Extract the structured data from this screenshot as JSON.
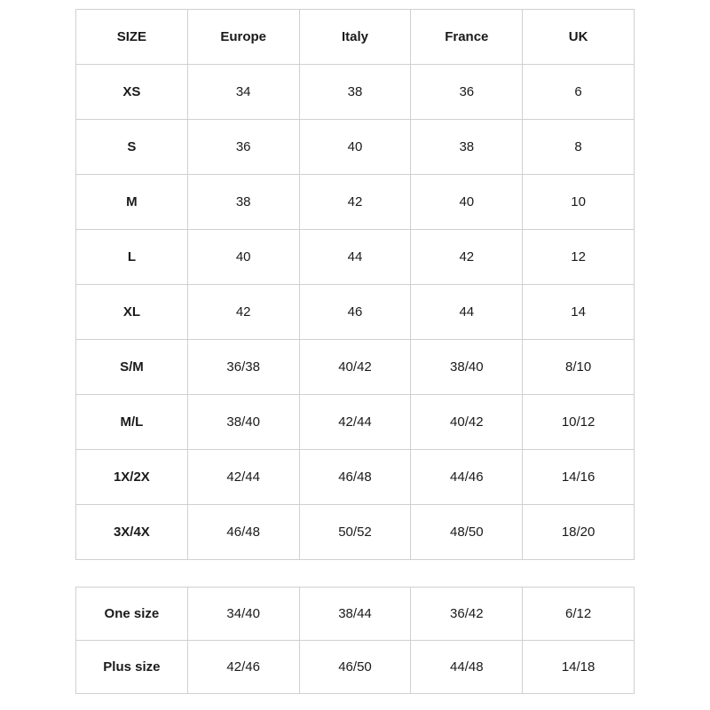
{
  "mainTable": {
    "headers": [
      "SIZE",
      "Europe",
      "Italy",
      "France",
      "UK"
    ],
    "rows": [
      [
        "XS",
        "34",
        "38",
        "36",
        "6"
      ],
      [
        "S",
        "36",
        "40",
        "38",
        "8"
      ],
      [
        "M",
        "38",
        "42",
        "40",
        "10"
      ],
      [
        "L",
        "40",
        "44",
        "42",
        "12"
      ],
      [
        "XL",
        "42",
        "46",
        "44",
        "14"
      ],
      [
        "S/M",
        "36/38",
        "40/42",
        "38/40",
        "8/10"
      ],
      [
        "M/L",
        "38/40",
        "42/44",
        "40/42",
        "10/12"
      ],
      [
        "1X/2X",
        "42/44",
        "46/48",
        "44/46",
        "14/16"
      ],
      [
        "3X/4X",
        "46/48",
        "50/52",
        "48/50",
        "18/20"
      ]
    ]
  },
  "secondTable": {
    "rows": [
      [
        "One size",
        "34/40",
        "38/44",
        "36/42",
        "6/12"
      ],
      [
        "Plus size",
        "42/46",
        "46/50",
        "44/48",
        "14/18"
      ]
    ]
  },
  "styling": {
    "border_color": "#d0d0d0",
    "text_color": "#1a1a1a",
    "background_color": "#ffffff",
    "font_size": 15,
    "header_font_weight": 700,
    "label_font_weight": 700,
    "value_font_weight": 400,
    "main_row_height": 62,
    "second_row_height": 60,
    "table_gap": 30,
    "columns": 5
  }
}
